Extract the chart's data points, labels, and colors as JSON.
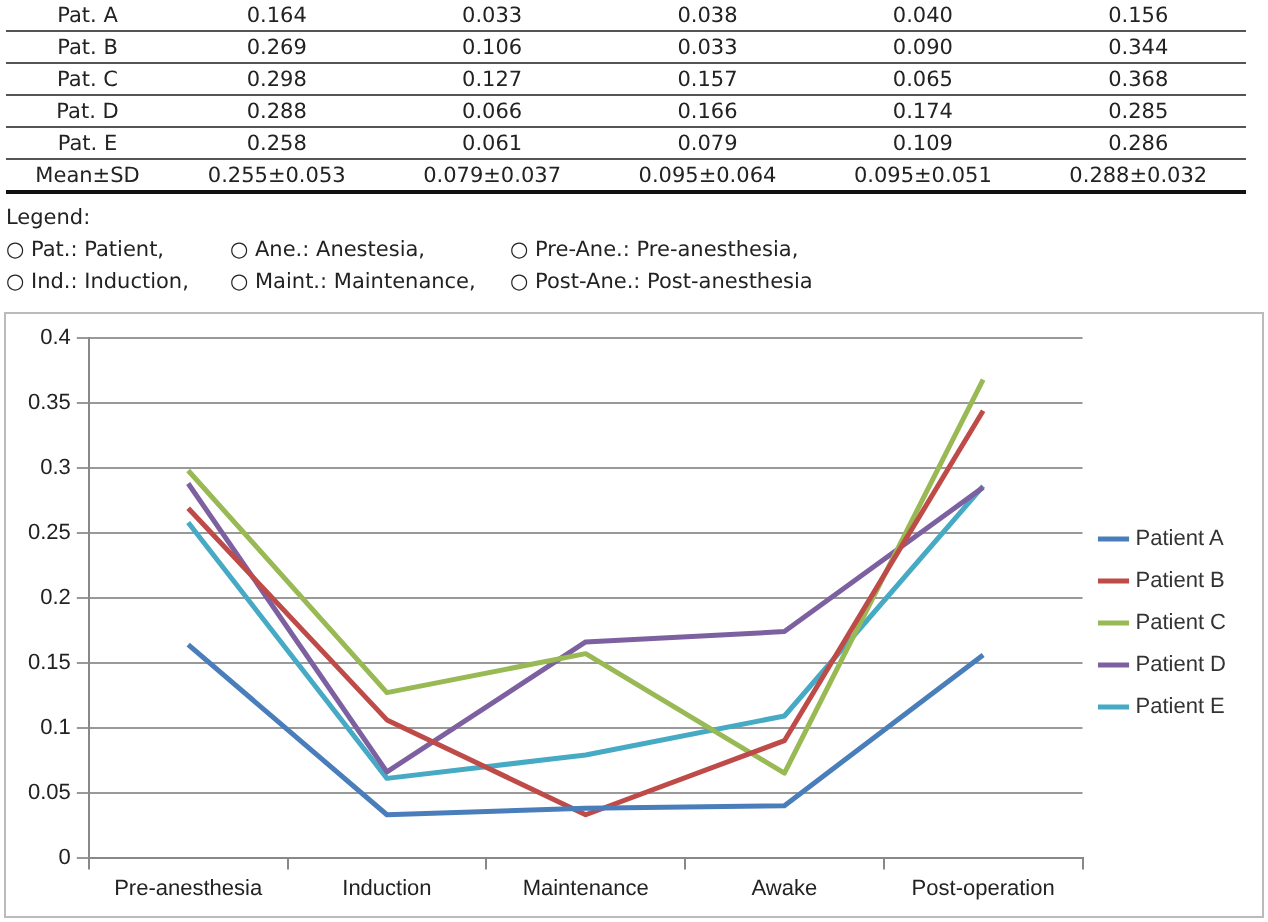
{
  "chart_data": [
    {
      "type": "other",
      "annotations": [
        "Pat.  A",
        "0.164",
        "0.033",
        "0.038",
        "0.040",
        "0.156",
        "Pat.  B",
        "0.269",
        "0.106",
        "0.033",
        "0.090",
        "0.344",
        "Pat.  C",
        "0.298",
        "0.127",
        "0.157",
        "0.065",
        "0.368",
        "Pat.  D",
        "0.288",
        "0.066",
        "0.166",
        "0.174",
        "0.285",
        "Pat.  E",
        "0.258",
        "0.061",
        "0.079",
        "0.109",
        "0.286",
        "Mean±SD",
        "0.255±0.053",
        "0.079±0.037",
        "0.095±0.064",
        "0.095±0.051",
        "0.288±0.032",
        "Legend:",
        "○  Pat.:  Patient,",
        "○  Ane.:  Anestesia,",
        "○  Pre-Ane.:  Pre-anesthesia,",
        "○  Ind.:  Induction,",
        "○  Maint.:  Maintenance,",
        "○  Post-Ane.:  Post-anesthesia"
      ]
    },
    {
      "type": "line",
      "categories": [
        "Pre-anesthesia",
        "Induction",
        "Maintenance",
        "Awake",
        "Post-operation"
      ],
      "series": [
        {
          "name": "Patient A",
          "color": "#4a7ebb",
          "values": [
            0.164,
            0.033,
            0.038,
            0.04,
            0.156
          ]
        },
        {
          "name": "Patient B",
          "color": "#be4b48",
          "values": [
            0.269,
            0.106,
            0.033,
            0.09,
            0.344
          ]
        },
        {
          "name": "Patient C",
          "color": "#98b954",
          "values": [
            0.298,
            0.127,
            0.157,
            0.065,
            0.368
          ]
        },
        {
          "name": "Patient D",
          "color": "#7d60a0",
          "values": [
            0.288,
            0.066,
            0.166,
            0.174,
            0.285
          ]
        },
        {
          "name": "Patient E",
          "color": "#46aac5",
          "values": [
            0.258,
            0.061,
            0.079,
            0.109,
            0.286
          ]
        }
      ],
      "ylim": [
        0,
        0.4
      ],
      "yticks": [
        0,
        0.05,
        0.1,
        0.15,
        0.2,
        0.25,
        0.3,
        0.35,
        0.4
      ],
      "grid": "y",
      "legend": "right",
      "marker": "none",
      "line_style": "solid"
    }
  ]
}
